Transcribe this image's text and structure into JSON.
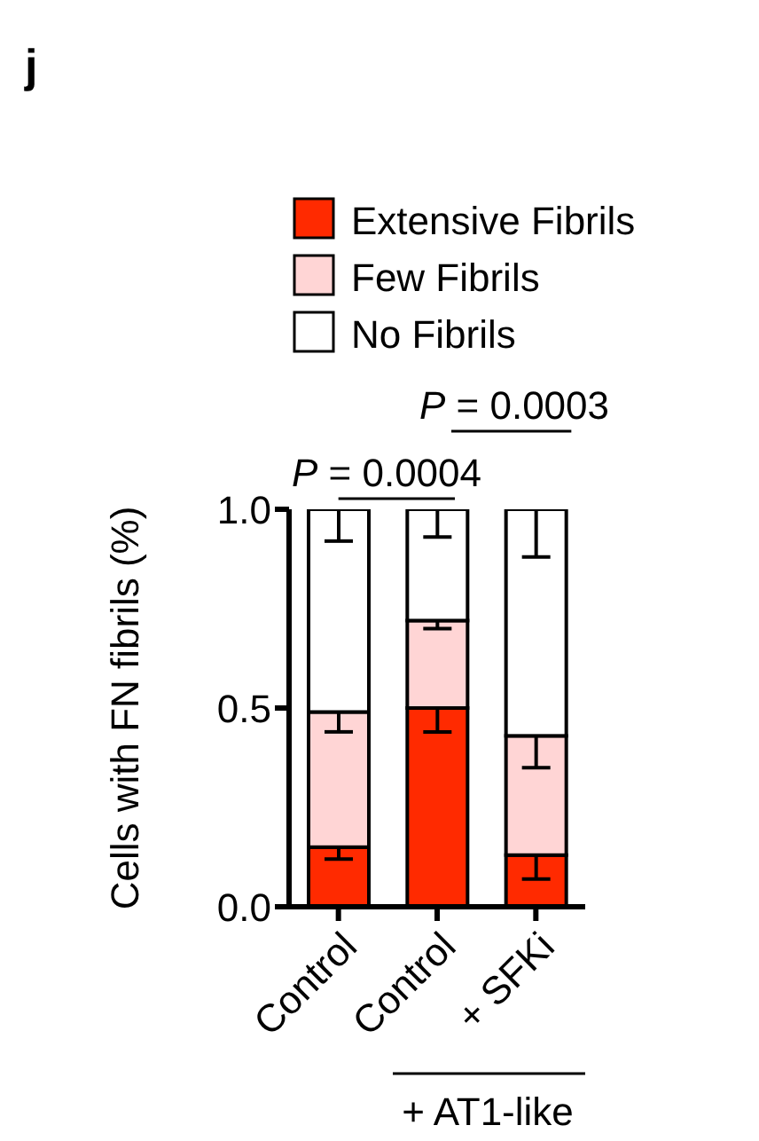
{
  "chart_data": {
    "type": "bar",
    "stacked": true,
    "ylabel": "Cells with FN fibrils (%)",
    "categories": [
      "Control",
      "Control",
      "+ SFKi"
    ],
    "series": [
      {
        "name": "Extensive Fibrils",
        "color": "#ff2a00",
        "values": [
          0.15,
          0.5,
          0.13
        ],
        "errors": [
          [
            0.12,
            0.15
          ],
          [
            0.44,
            0.5
          ],
          [
            0.07,
            0.13
          ]
        ]
      },
      {
        "name": "Few Fibrils",
        "color": "#ffd5d5",
        "values": [
          0.34,
          0.22,
          0.3
        ],
        "errors": [
          [
            0.44,
            0.49
          ],
          [
            0.7,
            0.72
          ],
          [
            0.35,
            0.43
          ]
        ]
      },
      {
        "name": "No Fibrils",
        "color": "#ffffff",
        "values": [
          0.51,
          0.28,
          0.57
        ],
        "errors": [
          [
            0.92,
            1.0
          ],
          [
            0.93,
            1.0
          ],
          [
            0.88,
            1.0
          ]
        ]
      }
    ],
    "ylim": [
      0,
      1
    ],
    "yticks": [
      {
        "value": 0,
        "label": "0.0"
      },
      {
        "value": 0.5,
        "label": "0.5"
      },
      {
        "value": 1,
        "label": "1.0"
      }
    ],
    "grid": false,
    "legend": "top",
    "annotations": [
      "j",
      "P = 0.0004",
      "P = 0.0003",
      "+ AT1-like"
    ]
  }
}
